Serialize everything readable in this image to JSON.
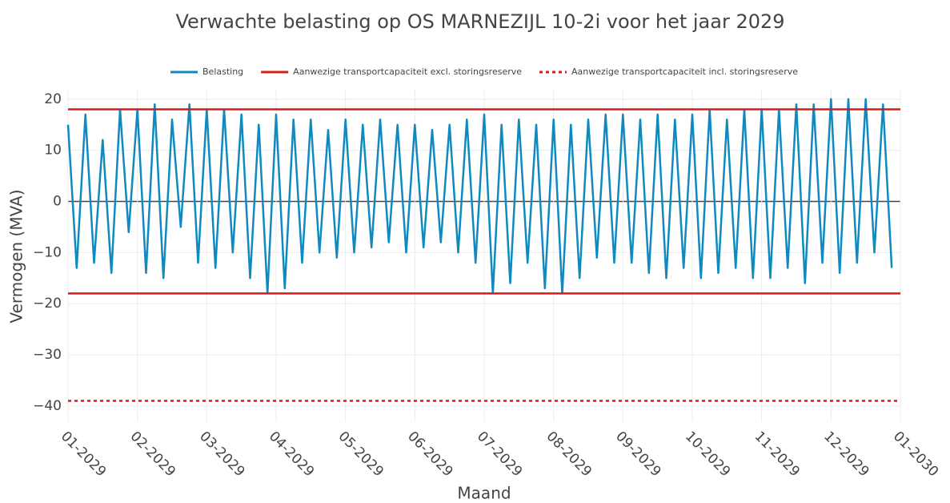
{
  "chart_data": {
    "type": "line",
    "title": "Verwachte belasting op OS MARNEZIJL 10-2i voor het jaar 2029",
    "xlabel": "Maand",
    "ylabel": "Vermogen (MVA)",
    "x": [
      0,
      0.125,
      0.25,
      0.375,
      0.5,
      0.625,
      0.75,
      0.875,
      1,
      1.125,
      1.25,
      1.375,
      1.5,
      1.625,
      1.75,
      1.875,
      2,
      2.125,
      2.25,
      2.375,
      2.5,
      2.625,
      2.75,
      2.875,
      3,
      3.125,
      3.25,
      3.375,
      3.5,
      3.625,
      3.75,
      3.875,
      4,
      4.125,
      4.25,
      4.375,
      4.5,
      4.625,
      4.75,
      4.875,
      5,
      5.125,
      5.25,
      5.375,
      5.5,
      5.625,
      5.75,
      5.875,
      6,
      6.125,
      6.25,
      6.375,
      6.5,
      6.625,
      6.75,
      6.875,
      7,
      7.125,
      7.25,
      7.375,
      7.5,
      7.625,
      7.75,
      7.875,
      8,
      8.125,
      8.25,
      8.375,
      8.5,
      8.625,
      8.75,
      8.875,
      9,
      9.125,
      9.25,
      9.375,
      9.5,
      9.625,
      9.75,
      9.875,
      10,
      10.125,
      10.25,
      10.375,
      10.5,
      10.625,
      10.75,
      10.875,
      11,
      11.125,
      11.25,
      11.375,
      11.5,
      11.625,
      11.75,
      11.875
    ],
    "series": [
      {
        "name": "Belasting",
        "color": "#0f8ac0",
        "values": [
          15,
          -13,
          17,
          -12,
          12,
          -14,
          18,
          -6,
          18,
          -14,
          19,
          -15,
          16,
          -5,
          19,
          -12,
          18,
          -13,
          18,
          -10,
          17,
          -15,
          15,
          -18,
          17,
          -17,
          16,
          -12,
          16,
          -10,
          14,
          -11,
          16,
          -10,
          15,
          -9,
          16,
          -8,
          15,
          -10,
          15,
          -9,
          14,
          -8,
          15,
          -10,
          16,
          -12,
          17,
          -18,
          15,
          -16,
          16,
          -12,
          15,
          -17,
          16,
          -18,
          15,
          -15,
          16,
          -11,
          17,
          -12,
          17,
          -12,
          16,
          -14,
          17,
          -15,
          16,
          -13,
          17,
          -15,
          18,
          -14,
          16,
          -13,
          18,
          -15,
          18,
          -15,
          18,
          -13,
          19,
          -16,
          19,
          -12,
          20,
          -14,
          20,
          -12,
          20,
          -10,
          19,
          -13
        ]
      }
    ],
    "hlines": [
      {
        "name": "Aanwezige transportcapaciteit excl. storingsreserve",
        "color": "#d41c1c",
        "dash": false,
        "values": [
          18,
          -18
        ]
      },
      {
        "name": "Aanwezige transportcapaciteit incl. storingsreserve",
        "color": "#d41c1c",
        "dash": true,
        "values": [
          -39
        ]
      }
    ],
    "xlim": [
      0,
      12
    ],
    "xticks": [
      {
        "value": 0,
        "label": "01-2029"
      },
      {
        "value": 1,
        "label": "02-2029"
      },
      {
        "value": 2,
        "label": "03-2029"
      },
      {
        "value": 3,
        "label": "04-2029"
      },
      {
        "value": 4,
        "label": "05-2029"
      },
      {
        "value": 5,
        "label": "06-2029"
      },
      {
        "value": 6,
        "label": "07-2029"
      },
      {
        "value": 7,
        "label": "08-2029"
      },
      {
        "value": 8,
        "label": "09-2029"
      },
      {
        "value": 9,
        "label": "10-2029"
      },
      {
        "value": 10,
        "label": "11-2029"
      },
      {
        "value": 11,
        "label": "12-2029"
      },
      {
        "value": 12,
        "label": "01-2030"
      }
    ],
    "ylim": [
      -43,
      22
    ],
    "yticks": [
      {
        "value": -40,
        "label": "−40"
      },
      {
        "value": -30,
        "label": "−30"
      },
      {
        "value": -20,
        "label": "−20"
      },
      {
        "value": -10,
        "label": "−10"
      },
      0,
      10,
      20
    ],
    "grid": true
  }
}
